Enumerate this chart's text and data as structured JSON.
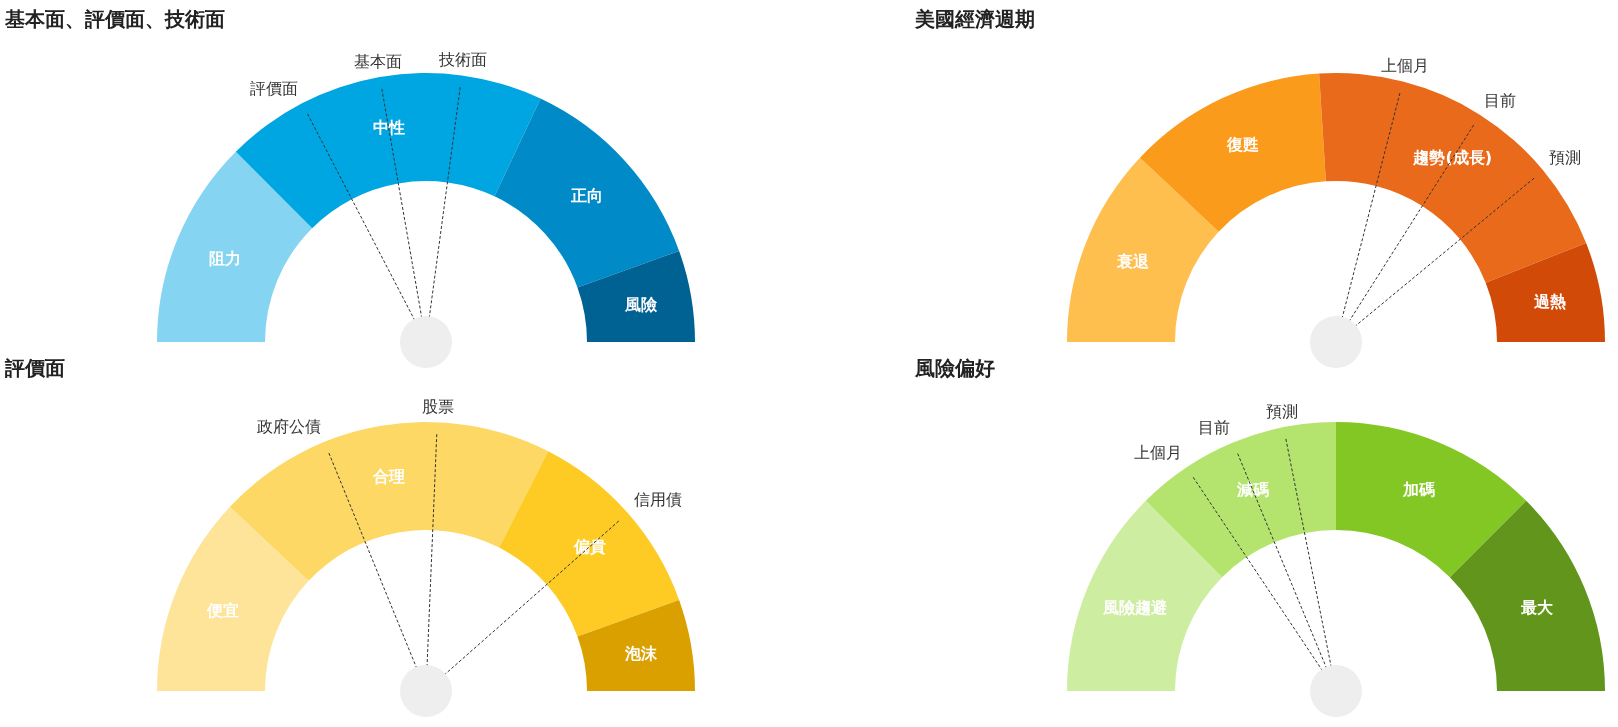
{
  "chart_data": [
    {
      "type": "donut",
      "title": "基本面、評價面、技術面",
      "categories": [
        "阻力",
        "中性",
        "正向",
        "風險"
      ],
      "values": [
        25,
        39,
        25,
        11
      ],
      "colors": [
        "#85d4f2",
        "#00a6e2",
        "#008ac8",
        "#006193"
      ],
      "data_labels": false,
      "legend": false,
      "needle": "中性",
      "annotations": [
        "評價面",
        "基本面",
        "技術面"
      ]
    },
    {
      "type": "donut",
      "title": "美國經濟週期",
      "categories": [
        "衰退",
        "復甦",
        "趨勢(成長)",
        "過熱"
      ],
      "values": [
        24,
        24,
        40,
        12
      ],
      "colors": [
        "#ffbf4e",
        "#fb9b1c",
        "#e96a1b",
        "#d24a08"
      ],
      "data_labels": false,
      "legend": false,
      "needle": "趨勢(成長)",
      "annotations": [
        "上個月",
        "目前",
        "預測"
      ]
    },
    {
      "type": "donut",
      "title": "評價面",
      "categories": [
        "便宜",
        "合理",
        "偏貴",
        "泡沫"
      ],
      "values": [
        24,
        41,
        24,
        11
      ],
      "colors": [
        "#fee498",
        "#fdd865",
        "#fdcb24",
        "#d9a000"
      ],
      "data_labels": false,
      "legend": false,
      "needle": "合理",
      "annotations": [
        "政府公債",
        "股票",
        {
          "text": "信用債",
          "x": "偏貴"
        }
      ]
    },
    {
      "type": "donut",
      "title": "風險偏好",
      "categories": [
        "風險趨避",
        "減碼",
        "加碼",
        "最大"
      ],
      "values": [
        25,
        25,
        25,
        25
      ],
      "colors": [
        "#cdeda0",
        "#b4e46e",
        "#83c724",
        "#62951c"
      ],
      "data_labels": false,
      "legend": false,
      "needle": "減碼",
      "annotations": [
        "上個月",
        "目前",
        "預測"
      ]
    }
  ]
}
